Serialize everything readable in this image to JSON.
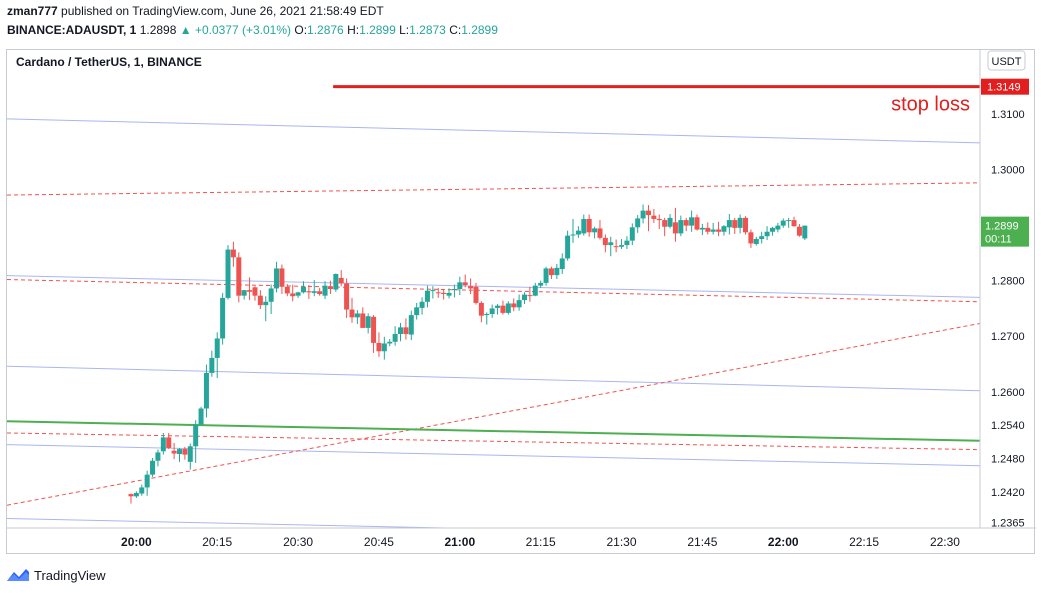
{
  "header": {
    "publisher": "zman777",
    "published_text": "published on TradingView.com, June 26, 2021 21:58:49 EDT",
    "symbol": "BINANCE:ADAUSDT, 1",
    "last": "1.2898",
    "change": "▲ +0.0377 (+3.01%)",
    "o_label": "O:",
    "o": "1.2876",
    "h_label": "H:",
    "h": "1.2899",
    "l_label": "L:",
    "l": "1.2873",
    "c_label": "C:",
    "c": "1.2899"
  },
  "footer": {
    "brand": "TradingView"
  },
  "colors": {
    "up": "#26a69a",
    "down": "#ef5350",
    "channel": "#a9b6f0",
    "dashed": "#ef5350",
    "support": "#4caf50",
    "stoploss": "#e31e1e"
  },
  "chart_data": {
    "type": "candlestick",
    "title": "Cardano / TetherUS, 1, BINANCE",
    "currency": "USDT",
    "x_ticks": [
      "20:00",
      "20:15",
      "20:30",
      "20:45",
      "21:00",
      "21:15",
      "21:30",
      "21:45",
      "22:00",
      "22:15",
      "22:30"
    ],
    "y_ticks": [
      1.2365,
      1.242,
      1.248,
      1.254,
      1.26,
      1.27,
      1.28,
      1.29,
      1.3,
      1.31
    ],
    "ylim": [
      1.2355,
      1.3215
    ],
    "xlim_minutes": [
      -4.8,
      31.3
    ],
    "price_badge": {
      "value": "1.2899",
      "countdown": "00:11",
      "color": "#4caf50"
    },
    "stop_loss": {
      "price": 1.3149,
      "label": "stop loss",
      "badge": "1.3149",
      "from_minute": 49.5
    },
    "candles": [
      [
        1.2416,
        1.2417,
        1.2399,
        1.2412
      ],
      [
        1.2412,
        1.2421,
        1.2409,
        1.2418
      ],
      [
        1.2417,
        1.2433,
        1.2413,
        1.2428
      ],
      [
        1.2428,
        1.2458,
        1.2413,
        1.2451
      ],
      [
        1.2451,
        1.2481,
        1.2447,
        1.2476
      ],
      [
        1.2476,
        1.2496,
        1.2466,
        1.2491
      ],
      [
        1.2493,
        1.2526,
        1.2487,
        1.2518
      ],
      [
        1.2518,
        1.2526,
        1.2497,
        1.2499
      ],
      [
        1.2494,
        1.2508,
        1.2479,
        1.2489
      ],
      [
        1.2488,
        1.2499,
        1.2474,
        1.2497
      ],
      [
        1.2497,
        1.2501,
        1.2478,
        1.2487
      ],
      [
        1.2474,
        1.2507,
        1.246,
        1.2502
      ],
      [
        1.2502,
        1.2549,
        1.2472,
        1.2541
      ],
      [
        1.2541,
        1.2573,
        1.2542,
        1.257
      ],
      [
        1.257,
        1.2649,
        1.2554,
        1.2634
      ],
      [
        1.2634,
        1.2674,
        1.2627,
        1.2661
      ],
      [
        1.2661,
        1.2707,
        1.2625,
        1.2696
      ],
      [
        1.2696,
        1.2778,
        1.2685,
        1.2769
      ],
      [
        1.2769,
        1.2864,
        1.2766,
        1.2856
      ],
      [
        1.2856,
        1.287,
        1.2825,
        1.2842
      ],
      [
        1.2842,
        1.2851,
        1.2761,
        1.2773
      ],
      [
        1.2773,
        1.2783,
        1.2766,
        1.2783
      ],
      [
        1.2783,
        1.2806,
        1.2765,
        1.278
      ],
      [
        1.2788,
        1.279,
        1.2764,
        1.2773
      ],
      [
        1.2773,
        1.2783,
        1.2749,
        1.2756
      ],
      [
        1.2756,
        1.2772,
        1.2727,
        1.2762
      ],
      [
        1.2762,
        1.2793,
        1.274,
        1.2786
      ],
      [
        1.2786,
        1.2834,
        1.2779,
        1.2822
      ],
      [
        1.2822,
        1.2829,
        1.2776,
        1.2789
      ],
      [
        1.2789,
        1.2794,
        1.2772,
        1.2777
      ],
      [
        1.2777,
        1.2793,
        1.2763,
        1.2772
      ],
      [
        1.2773,
        1.278,
        1.2769,
        1.2779
      ],
      [
        1.2779,
        1.2799,
        1.2777,
        1.2789
      ],
      [
        1.2781,
        1.2792,
        1.2767,
        1.2779
      ],
      [
        1.2778,
        1.2801,
        1.2772,
        1.2781
      ],
      [
        1.2781,
        1.2787,
        1.2773,
        1.2776
      ],
      [
        1.2773,
        1.2799,
        1.2767,
        1.2791
      ],
      [
        1.279,
        1.28,
        1.2776,
        1.2785
      ],
      [
        1.2784,
        1.2813,
        1.278,
        1.2812
      ],
      [
        1.2805,
        1.2819,
        1.279,
        1.2795
      ],
      [
        1.2795,
        1.2804,
        1.2733,
        1.2748
      ],
      [
        1.2748,
        1.2769,
        1.2724,
        1.2734
      ],
      [
        1.2734,
        1.2747,
        1.2722,
        1.2741
      ],
      [
        1.2741,
        1.2752,
        1.2715,
        1.2715
      ],
      [
        1.2715,
        1.2741,
        1.2705,
        1.2736
      ],
      [
        1.2735,
        1.2738,
        1.267,
        1.2688
      ],
      [
        1.2688,
        1.2707,
        1.2663,
        1.2673
      ],
      [
        1.2673,
        1.2699,
        1.2658,
        1.2687
      ],
      [
        1.2687,
        1.2695,
        1.2682,
        1.269
      ],
      [
        1.269,
        1.2718,
        1.2683,
        1.2704
      ],
      [
        1.2704,
        1.2724,
        1.2691,
        1.2716
      ],
      [
        1.2716,
        1.2732,
        1.2694,
        1.2704
      ],
      [
        1.2703,
        1.2746,
        1.2693,
        1.2738
      ],
      [
        1.2738,
        1.276,
        1.273,
        1.2752
      ],
      [
        1.2751,
        1.277,
        1.2739,
        1.2762
      ],
      [
        1.2762,
        1.2791,
        1.2752,
        1.2782
      ],
      [
        1.2782,
        1.279,
        1.2768,
        1.2783
      ],
      [
        1.2779,
        1.2787,
        1.2769,
        1.2778
      ],
      [
        1.2778,
        1.2784,
        1.2766,
        1.2776
      ],
      [
        1.2773,
        1.2786,
        1.2768,
        1.2778
      ],
      [
        1.2783,
        1.2793,
        1.277,
        1.2785
      ],
      [
        1.2785,
        1.2807,
        1.2774,
        1.2797
      ],
      [
        1.2797,
        1.2811,
        1.2788,
        1.2792
      ],
      [
        1.279,
        1.2804,
        1.2776,
        1.2786
      ],
      [
        1.2789,
        1.2796,
        1.2757,
        1.276
      ],
      [
        1.276,
        1.2763,
        1.2725,
        1.2737
      ],
      [
        1.2738,
        1.2743,
        1.2721,
        1.274
      ],
      [
        1.274,
        1.2757,
        1.2733,
        1.275
      ],
      [
        1.2751,
        1.2758,
        1.2739,
        1.2755
      ],
      [
        1.2755,
        1.2764,
        1.2739,
        1.2742
      ],
      [
        1.2742,
        1.2763,
        1.2739,
        1.2759
      ],
      [
        1.2759,
        1.2768,
        1.2745,
        1.2752
      ],
      [
        1.2752,
        1.2775,
        1.2746,
        1.2765
      ],
      [
        1.2765,
        1.2779,
        1.2758,
        1.2775
      ],
      [
        1.2774,
        1.2789,
        1.2762,
        1.2773
      ],
      [
        1.2773,
        1.2796,
        1.2772,
        1.2791
      ],
      [
        1.2791,
        1.28,
        1.2787,
        1.2796
      ],
      [
        1.2796,
        1.2825,
        1.2791,
        1.2822
      ],
      [
        1.2822,
        1.2825,
        1.2803,
        1.281
      ],
      [
        1.281,
        1.283,
        1.2803,
        1.2823
      ],
      [
        1.2821,
        1.2849,
        1.2812,
        1.284
      ],
      [
        1.284,
        1.289,
        1.2836,
        1.2881
      ],
      [
        1.2882,
        1.2911,
        1.2868,
        1.2883
      ],
      [
        1.2883,
        1.2898,
        1.2877,
        1.289
      ],
      [
        1.2885,
        1.2919,
        1.2881,
        1.2911
      ],
      [
        1.2911,
        1.2919,
        1.2879,
        1.2887
      ],
      [
        1.2887,
        1.2897,
        1.2876,
        1.2894
      ],
      [
        1.2894,
        1.2909,
        1.2874,
        1.2877
      ],
      [
        1.2877,
        1.2883,
        1.2851,
        1.2864
      ],
      [
        1.2864,
        1.2879,
        1.2844,
        1.2869
      ],
      [
        1.2862,
        1.2874,
        1.2851,
        1.2861
      ],
      [
        1.2861,
        1.2875,
        1.2857,
        1.2864
      ],
      [
        1.2864,
        1.288,
        1.2857,
        1.2872
      ],
      [
        1.2872,
        1.2903,
        1.2864,
        1.2896
      ],
      [
        1.2896,
        1.2918,
        1.2886,
        1.2912
      ],
      [
        1.2912,
        1.2937,
        1.2903,
        1.2926
      ],
      [
        1.2926,
        1.2936,
        1.2889,
        1.2918
      ],
      [
        1.2917,
        1.2929,
        1.2904,
        1.2911
      ],
      [
        1.2911,
        1.2919,
        1.2893,
        1.2909
      ],
      [
        1.2909,
        1.2913,
        1.288,
        1.2897
      ],
      [
        1.2897,
        1.292,
        1.2894,
        1.2913
      ],
      [
        1.2905,
        1.2931,
        1.287,
        1.2885
      ],
      [
        1.2885,
        1.2917,
        1.288,
        1.2909
      ],
      [
        1.2909,
        1.2913,
        1.2889,
        1.2899
      ],
      [
        1.2899,
        1.2926,
        1.2888,
        1.2914
      ],
      [
        1.2914,
        1.2919,
        1.289,
        1.2892
      ],
      [
        1.2892,
        1.2902,
        1.2882,
        1.2895
      ],
      [
        1.2895,
        1.2905,
        1.2883,
        1.2888
      ],
      [
        1.2888,
        1.2904,
        1.2883,
        1.2892
      ],
      [
        1.2892,
        1.2906,
        1.288,
        1.2888
      ],
      [
        1.2888,
        1.29,
        1.2881,
        1.2898
      ],
      [
        1.2896,
        1.292,
        1.2883,
        1.2909
      ],
      [
        1.2909,
        1.2913,
        1.2884,
        1.2895
      ],
      [
        1.2895,
        1.2919,
        1.2885,
        1.2913
      ],
      [
        1.2913,
        1.2916,
        1.2883,
        1.2887
      ],
      [
        1.2887,
        1.2892,
        1.2859,
        1.2867
      ],
      [
        1.2866,
        1.2879,
        1.2863,
        1.2875
      ],
      [
        1.2875,
        1.2888,
        1.2867,
        1.288
      ],
      [
        1.288,
        1.2898,
        1.2873,
        1.2888
      ],
      [
        1.2888,
        1.2897,
        1.2881,
        1.2895
      ],
      [
        1.2892,
        1.2904,
        1.2887,
        1.2899
      ],
      [
        1.2899,
        1.2912,
        1.2895,
        1.2908
      ],
      [
        1.2908,
        1.2913,
        1.2895,
        1.2909
      ],
      [
        1.2909,
        1.2915,
        1.2897,
        1.2898
      ],
      [
        1.2897,
        1.2902,
        1.2879,
        1.2881
      ],
      [
        1.2876,
        1.2899,
        1.2873,
        1.2899
      ]
    ],
    "trendlines": [
      {
        "kind": "channel",
        "from": [
          -4.8,
          1.3091
        ],
        "to": [
          31.3,
          1.3048
        ]
      },
      {
        "kind": "channel",
        "from": [
          -4.8,
          1.2809
        ],
        "to": [
          31.3,
          1.277
        ]
      },
      {
        "kind": "channel",
        "from": [
          -4.8,
          1.2646
        ],
        "to": [
          31.3,
          1.2602
        ]
      },
      {
        "kind": "channel",
        "from": [
          -4.8,
          1.2505
        ],
        "to": [
          31.3,
          1.2467
        ]
      },
      {
        "kind": "channel",
        "from": [
          -4.8,
          1.2372
        ],
        "to": [
          11.5,
          1.2355
        ]
      },
      {
        "kind": "dashed",
        "from": [
          -4.8,
          1.3247
        ],
        "to": [
          31.3,
          1.3238
        ]
      },
      {
        "kind": "dashed",
        "from": [
          -4.8,
          1.2954
        ],
        "to": [
          31.3,
          1.2976
        ]
      },
      {
        "kind": "dashed",
        "from": [
          -4.8,
          1.2802
        ],
        "to": [
          31.3,
          1.2762
        ]
      },
      {
        "kind": "dashed",
        "from": [
          -4.8,
          1.2526
        ],
        "to": [
          31.3,
          1.2496
        ]
      },
      {
        "kind": "dashed",
        "from": [
          -4.8,
          1.2396
        ],
        "to": [
          31.3,
          1.2723
        ]
      },
      {
        "kind": "support",
        "from": [
          -4.8,
          1.2547
        ],
        "to": [
          31.3,
          1.2512
        ]
      }
    ]
  }
}
